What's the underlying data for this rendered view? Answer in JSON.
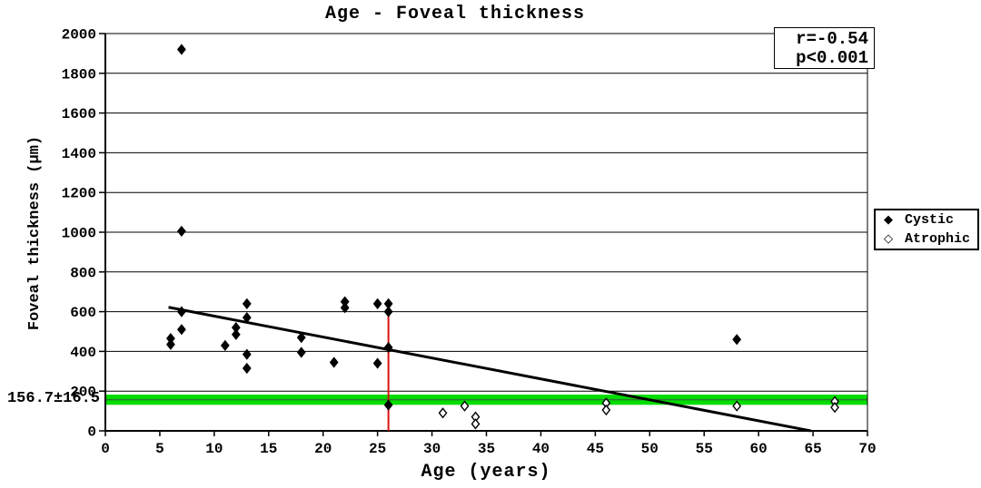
{
  "title": "Age - Foveal thickness",
  "legend": {
    "items": [
      {
        "label": "Cystic",
        "icon": "filled-diamond-icon",
        "glyph": "◆"
      },
      {
        "label": "Atrophic",
        "icon": "open-diamond-icon",
        "glyph": "◇"
      }
    ]
  },
  "colors": {
    "background": "#ffffff",
    "axis": "#000000",
    "band_green": "#00dd00",
    "band_center_green": "#2d7a2d",
    "marker_red": "#dd1111"
  },
  "chart_data": {
    "type": "scatter",
    "title": "Age - Foveal thickness",
    "xlabel": "Age (years)",
    "ylabel": "Foveal thickness (μm)",
    "xlim": [
      0,
      70
    ],
    "ylim": [
      0,
      2000
    ],
    "x_ticks": [
      0,
      5,
      10,
      15,
      20,
      25,
      30,
      35,
      40,
      45,
      50,
      55,
      60,
      65,
      70
    ],
    "y_ticks": [
      0,
      200,
      400,
      600,
      800,
      1000,
      1200,
      1400,
      1600,
      1800,
      2000
    ],
    "grid": true,
    "legend_position": "right-outside",
    "series": [
      {
        "name": "Cystic",
        "marker": "filled-diamond",
        "points": [
          [
            6,
            465
          ],
          [
            6,
            435
          ],
          [
            7,
            1920
          ],
          [
            7,
            1005
          ],
          [
            7,
            600
          ],
          [
            7,
            510
          ],
          [
            11,
            430
          ],
          [
            12,
            520
          ],
          [
            12,
            485
          ],
          [
            13,
            640
          ],
          [
            13,
            570
          ],
          [
            13,
            385
          ],
          [
            13,
            315
          ],
          [
            18,
            470
          ],
          [
            18,
            395
          ],
          [
            21,
            345
          ],
          [
            22,
            650
          ],
          [
            22,
            620
          ],
          [
            25,
            640
          ],
          [
            25,
            340
          ],
          [
            26,
            640
          ],
          [
            26,
            600
          ],
          [
            26,
            420
          ],
          [
            26,
            130
          ],
          [
            58,
            460
          ]
        ]
      },
      {
        "name": "Atrophic",
        "marker": "open-diamond",
        "points": [
          [
            31,
            90
          ],
          [
            33,
            125
          ],
          [
            34,
            70
          ],
          [
            34,
            35
          ],
          [
            46,
            140
          ],
          [
            46,
            105
          ],
          [
            58,
            125
          ],
          [
            67,
            148
          ],
          [
            67,
            118
          ]
        ]
      }
    ],
    "trend_line": {
      "x1": 5.8,
      "y1": 622,
      "x2": 64.8,
      "y2": 0,
      "color": "#000000"
    },
    "vertical_line": {
      "x": 26,
      "y1": 0,
      "y2": 600,
      "color": "#dd1111"
    },
    "reference_band": {
      "center": 156.7,
      "half_width": 16.5,
      "label": "156.7±16.5",
      "band_color": "#00dd00",
      "center_line_color": "#2d7a2d"
    },
    "stats": {
      "r": "r=-0.54",
      "p": "p<0.001"
    }
  }
}
